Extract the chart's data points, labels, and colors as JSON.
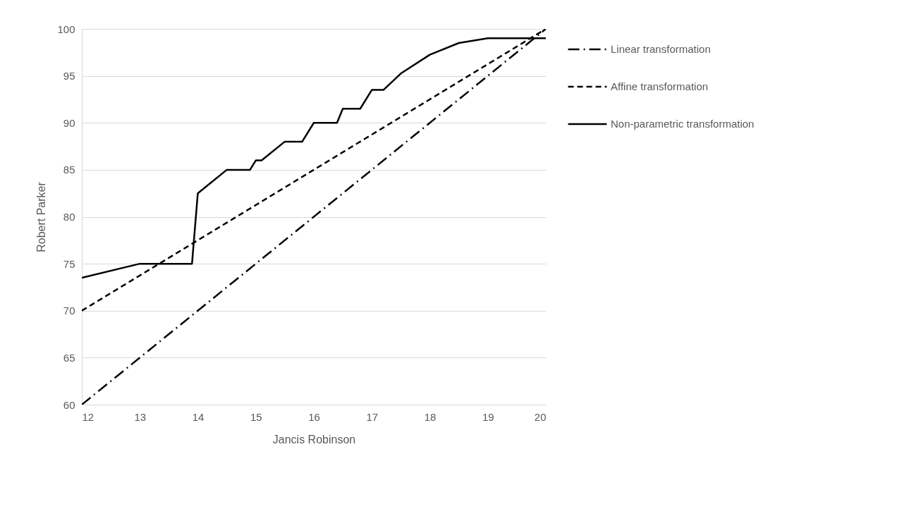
{
  "chart_data": {
    "type": "line",
    "xlabel": "Jancis Robinson",
    "ylabel": "Robert Parker",
    "xlim": [
      12,
      20
    ],
    "xticks": [
      12,
      13,
      14,
      15,
      16,
      17,
      18,
      19,
      20
    ],
    "ylim": [
      60,
      100
    ],
    "yticks": [
      60,
      65,
      70,
      75,
      80,
      85,
      90,
      95,
      100
    ],
    "grid": "y",
    "legend": "right",
    "marker": "none",
    "series": [
      {
        "name": "Linear transformation",
        "color": "#000000",
        "line_style": "dashdot",
        "x": [
          12,
          20
        ],
        "values": [
          60,
          100
        ]
      },
      {
        "name": "Affine transformation",
        "color": "#000000",
        "line_style": "dashed",
        "x": [
          12,
          20
        ],
        "values": [
          70,
          100
        ]
      },
      {
        "name": "Non-parametric transformation",
        "color": "#000000",
        "line_style": "solid",
        "x": [
          12,
          13,
          13.9,
          14,
          14.5,
          14.9,
          15,
          15.1,
          15.5,
          15.8,
          16,
          16.4,
          16.5,
          16.8,
          17,
          17.2,
          17.5,
          18,
          18.5,
          19,
          20
        ],
        "values": [
          73.5,
          75,
          75,
          82.5,
          85,
          85,
          86,
          86,
          88,
          88,
          90,
          90,
          91.5,
          91.5,
          93.5,
          93.5,
          95.25,
          97.25,
          98.5,
          99,
          99
        ]
      }
    ]
  }
}
